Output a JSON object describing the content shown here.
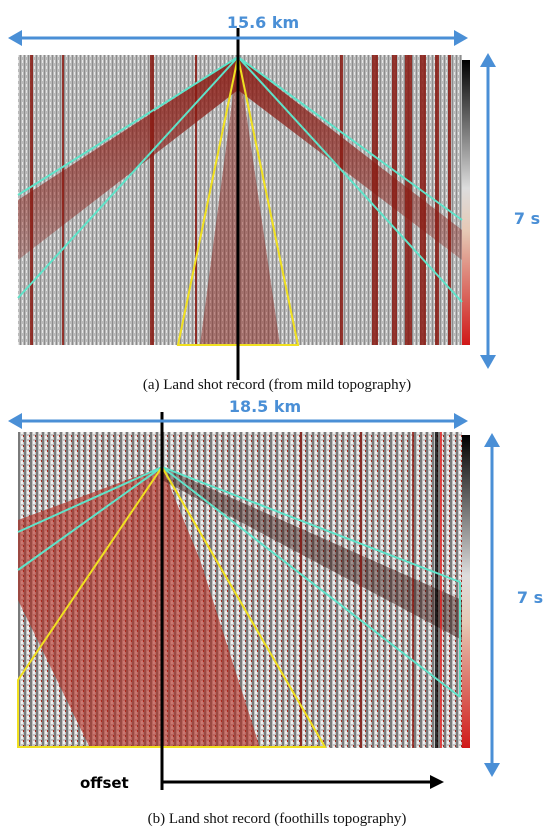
{
  "panels": [
    {
      "width_label": "15.6 km",
      "height_label": "7 s",
      "caption": "(a) Land shot record (from mild topography)"
    },
    {
      "width_label": "18.5 km",
      "height_label": "7 s",
      "axis_label": "offset",
      "caption": "(b) Land shot record (foothills topography)"
    }
  ]
}
